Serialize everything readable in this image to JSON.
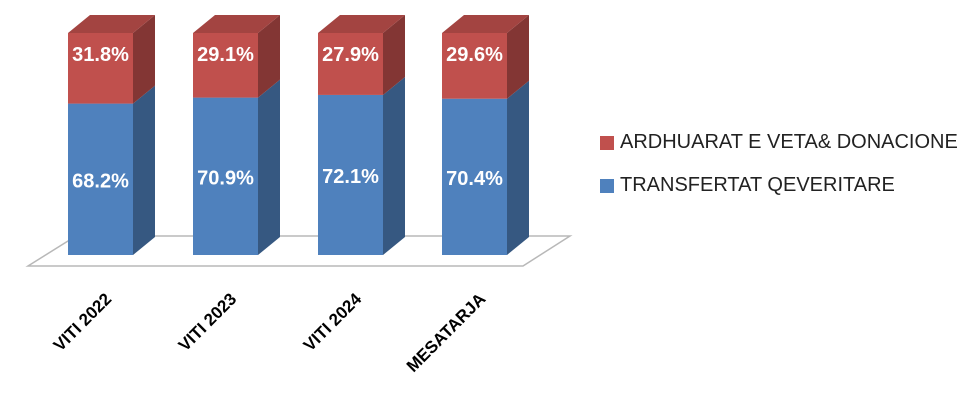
{
  "chart_data": {
    "type": "bar",
    "stacked": true,
    "percent": true,
    "three_d": true,
    "categories": [
      "VITI 2022",
      "VITI 2023",
      "VITI 2024",
      "MESATARJA"
    ],
    "series": [
      {
        "name": "TRANSFERTAT QEVERITARE",
        "values": [
          68.2,
          70.9,
          72.1,
          70.4
        ],
        "labels": [
          "68.2%",
          "70.9%",
          "72.1%",
          "70.4%"
        ],
        "color": "#4F81BD"
      },
      {
        "name": "ARDHUARAT E VETA& DONACIONE",
        "values": [
          31.8,
          29.1,
          27.9,
          29.6
        ],
        "labels": [
          "31.8%",
          "29.1%",
          "27.9%",
          "29.6%"
        ],
        "color": "#C0504D"
      }
    ],
    "ylim": [
      0,
      100
    ],
    "grid": false,
    "legend_position": "right"
  },
  "legend": {
    "items": [
      {
        "label": "ARDHUARAT E VETA& DONACIONE",
        "color": "#C0504D"
      },
      {
        "label": "TRANSFERTAT QEVERITARE",
        "color": "#4F81BD"
      }
    ]
  }
}
